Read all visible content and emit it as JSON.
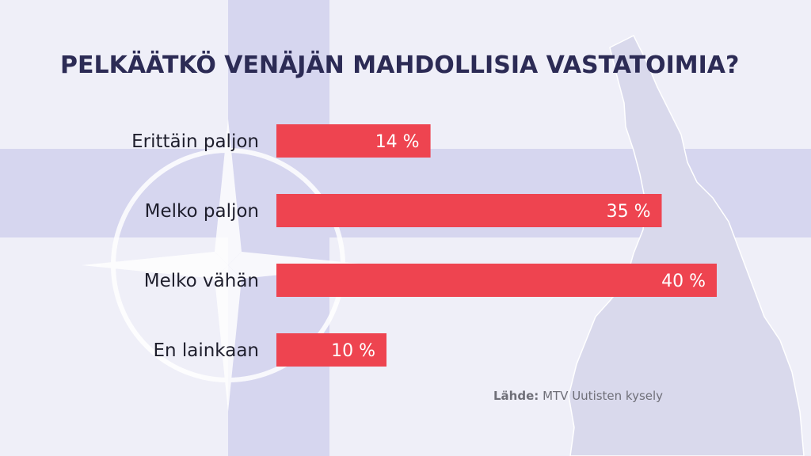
{
  "chart_data": {
    "type": "bar",
    "orientation": "horizontal",
    "title": "PELKÄÄTKÖ VENÄJÄN MAHDOLLISIA VASTATOIMIA?",
    "categories": [
      "Erittäin paljon",
      "Melko paljon",
      "Melko vähän",
      "En lainkaan"
    ],
    "values": [
      14,
      35,
      40,
      10
    ],
    "value_labels": [
      "14 %",
      "35 %",
      "40 %",
      "10 %"
    ],
    "xlim": [
      0,
      40
    ],
    "grid": false,
    "bar_color": "#ee4450"
  },
  "source": {
    "label": "Lähde:",
    "text": "MTV Uutisten kysely"
  },
  "colors": {
    "background": "#eaeaf6",
    "flag_cross": "#d4d4ee",
    "title": "#2c2b55"
  }
}
